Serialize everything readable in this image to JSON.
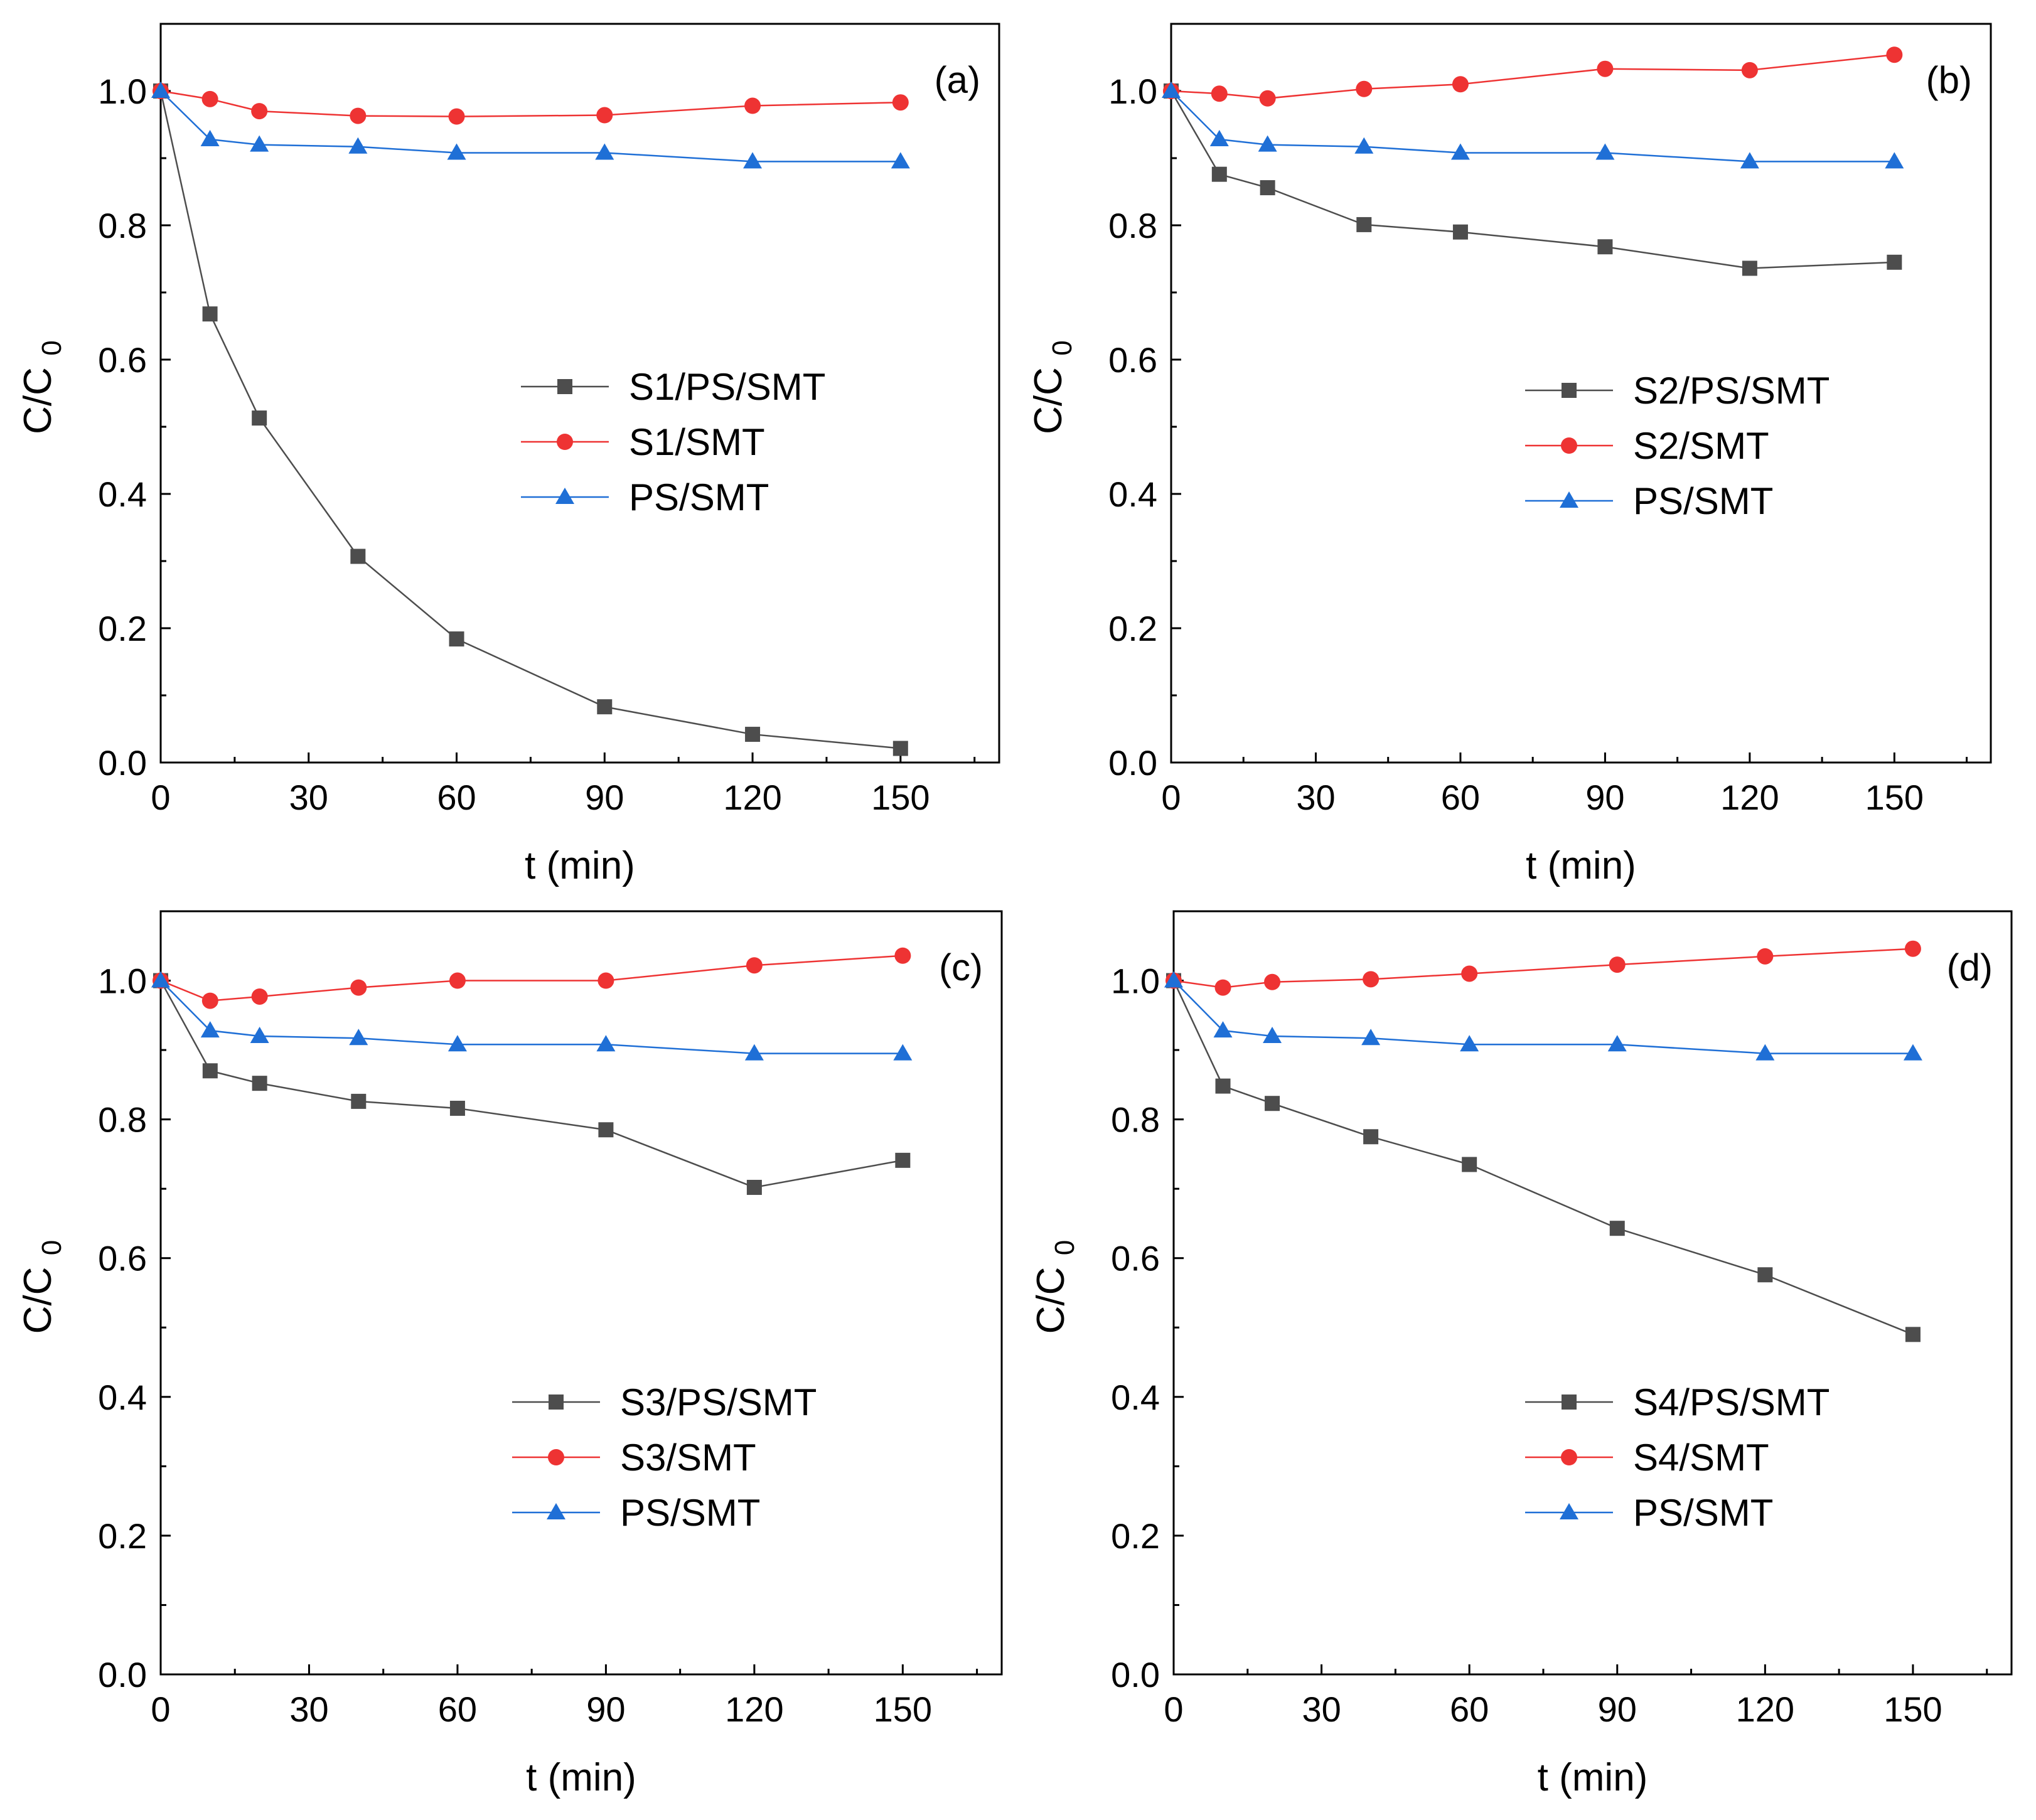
{
  "chart_data": [
    {
      "type": "line",
      "panel_label": "(a)",
      "xlabel": "t (min)",
      "ylabel": "C/C",
      "ylabel_sub": "0",
      "xlim": [
        0,
        170
      ],
      "ylim": [
        0,
        1.1
      ],
      "xticks": [
        0,
        30,
        60,
        90,
        120,
        150
      ],
      "yticks": [
        0.0,
        0.2,
        0.4,
        0.6,
        0.8,
        1.0
      ],
      "xtick_labels": [
        "0",
        "30",
        "60",
        "90",
        "120",
        "150"
      ],
      "ytick_labels": [
        "0.0",
        "0.2",
        "0.4",
        "0.6",
        "0.8",
        "1.0"
      ],
      "legend_position": "center-right",
      "x": [
        0,
        10,
        20,
        40,
        60,
        90,
        120,
        150
      ],
      "series": [
        {
          "name": "S1/PS/SMT",
          "marker": "square",
          "color": "#4d4d4d",
          "values": [
            1.0,
            0.668,
            0.513,
            0.307,
            0.184,
            0.083,
            0.042,
            0.021
          ]
        },
        {
          "name": "S1/SMT",
          "marker": "circle",
          "color": "#ee3333",
          "values": [
            1.0,
            0.988,
            0.97,
            0.963,
            0.962,
            0.964,
            0.978,
            0.983
          ]
        },
        {
          "name": "PS/SMT",
          "marker": "triangle",
          "color": "#1f6fd6",
          "values": [
            1.0,
            0.928,
            0.92,
            0.917,
            0.908,
            0.908,
            0.895,
            0.895
          ]
        }
      ]
    },
    {
      "type": "line",
      "panel_label": "(b)",
      "xlabel": "t (min)",
      "ylabel": "C/C",
      "ylabel_sub": "0",
      "xlim": [
        0,
        170
      ],
      "ylim": [
        0,
        1.1
      ],
      "xticks": [
        0,
        30,
        60,
        90,
        120,
        150
      ],
      "yticks": [
        0.0,
        0.2,
        0.4,
        0.6,
        0.8,
        1.0
      ],
      "xtick_labels": [
        "0",
        "30",
        "60",
        "90",
        "120",
        "150"
      ],
      "ytick_labels": [
        "0.0",
        "0.2",
        "0.4",
        "0.6",
        "0.8",
        "1.0"
      ],
      "legend_position": "center-right",
      "x": [
        0,
        10,
        20,
        40,
        60,
        90,
        120,
        150
      ],
      "series": [
        {
          "name": "S2/PS/SMT",
          "marker": "square",
          "color": "#4d4d4d",
          "values": [
            1.0,
            0.876,
            0.856,
            0.801,
            0.79,
            0.768,
            0.736,
            0.745
          ]
        },
        {
          "name": "S2/SMT",
          "marker": "circle",
          "color": "#ee3333",
          "values": [
            1.0,
            0.996,
            0.989,
            1.003,
            1.01,
            1.033,
            1.031,
            1.054
          ]
        },
        {
          "name": "PS/SMT",
          "marker": "triangle",
          "color": "#1f6fd6",
          "values": [
            1.0,
            0.928,
            0.92,
            0.917,
            0.908,
            0.908,
            0.895,
            0.895
          ]
        }
      ]
    },
    {
      "type": "line",
      "panel_label": "(c)",
      "xlabel": "t (min)",
      "ylabel": "C/C",
      "ylabel_sub": "0",
      "xlim": [
        0,
        170
      ],
      "ylim": [
        0,
        1.1
      ],
      "xticks": [
        0,
        30,
        60,
        90,
        120,
        150
      ],
      "yticks": [
        0.0,
        0.2,
        0.4,
        0.6,
        0.8,
        1.0
      ],
      "xtick_labels": [
        "0",
        "30",
        "60",
        "90",
        "120",
        "150"
      ],
      "ytick_labels": [
        "0.0",
        "0.2",
        "0.4",
        "0.6",
        "0.8",
        "1.0"
      ],
      "legend_position": "bottom-right",
      "x": [
        0,
        10,
        20,
        40,
        60,
        90,
        120,
        150
      ],
      "series": [
        {
          "name": "S3/PS/SMT",
          "marker": "square",
          "color": "#4d4d4d",
          "values": [
            1.0,
            0.87,
            0.852,
            0.826,
            0.816,
            0.785,
            0.702,
            0.741
          ]
        },
        {
          "name": "S3/SMT",
          "marker": "circle",
          "color": "#ee3333",
          "values": [
            1.0,
            0.971,
            0.977,
            0.99,
            1.0,
            1.0,
            1.022,
            1.036
          ]
        },
        {
          "name": "PS/SMT",
          "marker": "triangle",
          "color": "#1f6fd6",
          "values": [
            1.0,
            0.928,
            0.92,
            0.917,
            0.908,
            0.908,
            0.895,
            0.895
          ]
        }
      ]
    },
    {
      "type": "line",
      "panel_label": "(d)",
      "xlabel": "t (min)",
      "ylabel": "C/C",
      "ylabel_sub": "0",
      "xlim": [
        0,
        170
      ],
      "ylim": [
        0,
        1.1
      ],
      "xticks": [
        0,
        30,
        60,
        90,
        120,
        150
      ],
      "yticks": [
        0.0,
        0.2,
        0.4,
        0.6,
        0.8,
        1.0
      ],
      "xtick_labels": [
        "0",
        "30",
        "60",
        "90",
        "120",
        "150"
      ],
      "ytick_labels": [
        "0.0",
        "0.2",
        "0.4",
        "0.6",
        "0.8",
        "1.0"
      ],
      "legend_position": "bottom-right",
      "x": [
        0,
        10,
        20,
        40,
        60,
        90,
        120,
        150
      ],
      "series": [
        {
          "name": "S4/PS/SMT",
          "marker": "square",
          "color": "#4d4d4d",
          "values": [
            1.0,
            0.848,
            0.823,
            0.775,
            0.735,
            0.643,
            0.576,
            0.49
          ]
        },
        {
          "name": "S4/SMT",
          "marker": "circle",
          "color": "#ee3333",
          "values": [
            1.0,
            0.99,
            0.998,
            1.002,
            1.01,
            1.023,
            1.035,
            1.046
          ]
        },
        {
          "name": "PS/SMT",
          "marker": "triangle",
          "color": "#1f6fd6",
          "values": [
            1.0,
            0.928,
            0.92,
            0.917,
            0.908,
            0.908,
            0.895,
            0.895
          ]
        }
      ]
    }
  ]
}
